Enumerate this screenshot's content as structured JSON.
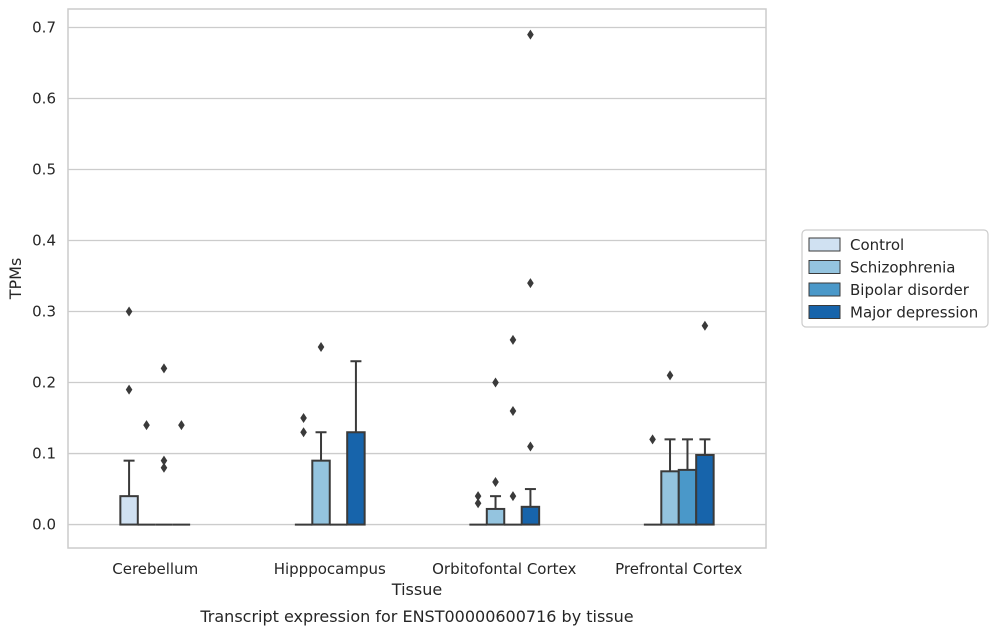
{
  "chart_data": {
    "type": "bar",
    "title": "",
    "caption": "Transcript expression for ENST00000600716 by tissue",
    "xlabel": "Tissue",
    "ylabel": "TPMs",
    "ylim": [
      -0.033,
      0.726
    ],
    "yticks": [
      0.0,
      0.1,
      0.2,
      0.3,
      0.4,
      0.5,
      0.6,
      0.7
    ],
    "ytick_labels": [
      "0.0",
      "0.1",
      "0.2",
      "0.3",
      "0.4",
      "0.5",
      "0.6",
      "0.7"
    ],
    "grid": "horizontal",
    "legend_position": "right",
    "categories": [
      "Cerebellum",
      "Hipppocampus",
      "Orbitofontal Cortex",
      "Prefrontal Cortex"
    ],
    "series": [
      {
        "name": "Control",
        "color": "#d0e1f2",
        "values": [
          0.04,
          0.0,
          0.0,
          0.0
        ],
        "error_upper": [
          0.09,
          null,
          null,
          null
        ],
        "outliers": [
          [
            0.3,
            0.19
          ],
          [
            0.15,
            0.13
          ],
          [
            0.04,
            0.03
          ],
          [
            0.12
          ]
        ]
      },
      {
        "name": "Schizophrenia",
        "color": "#94c4df",
        "values": [
          0.0,
          0.09,
          0.022,
          0.075
        ],
        "error_upper": [
          null,
          0.13,
          0.04,
          0.12
        ],
        "outliers": [
          [
            0.14
          ],
          [
            0.25
          ],
          [
            0.2,
            0.06
          ],
          [
            0.21
          ]
        ]
      },
      {
        "name": "Bipolar disorder",
        "color": "#4a98c9",
        "values": [
          0.0,
          0.0,
          0.0,
          0.077
        ],
        "error_upper": [
          null,
          null,
          null,
          0.12
        ],
        "outliers": [
          [
            0.22,
            0.09,
            0.08
          ],
          [],
          [
            0.26,
            0.16,
            0.04
          ],
          []
        ]
      },
      {
        "name": "Major depression",
        "color": "#1764ab",
        "values": [
          0.0,
          0.13,
          0.025,
          0.098
        ],
        "error_upper": [
          null,
          0.23,
          0.05,
          0.12
        ],
        "outliers": [
          [
            0.14
          ],
          [],
          [
            0.69,
            0.34,
            0.11
          ],
          [
            0.28
          ]
        ]
      }
    ]
  }
}
